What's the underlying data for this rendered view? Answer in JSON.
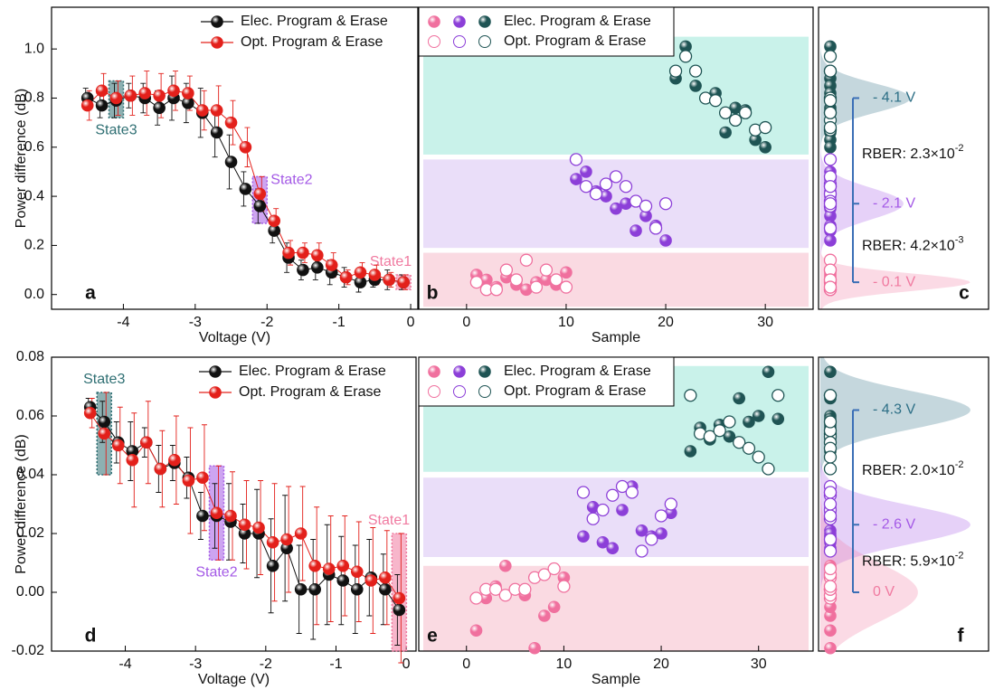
{
  "chart_data": [
    {
      "type": "errorline",
      "panel": "a",
      "xlabel": "Voltage (V)",
      "ylabel": "Power difference (dB)",
      "xlim": [
        -5.0,
        0.1
      ],
      "ylim": [
        -0.06,
        1.17
      ],
      "xticks": [
        -4,
        -3,
        -2,
        -1,
        0
      ],
      "yticks": [
        {
          "value": 0,
          "label": "0.0"
        },
        0.2,
        0.4,
        0.6,
        0.8,
        {
          "value": 1,
          "label": "1.0"
        }
      ],
      "x": [
        -4.5,
        -4.3,
        -4.1,
        -3.9,
        -3.7,
        -3.5,
        -3.3,
        -3.1,
        -2.9,
        -2.7,
        -2.5,
        -2.3,
        -2.1,
        -1.9,
        -1.7,
        -1.5,
        -1.3,
        -1.1,
        -0.9,
        -0.7,
        -0.5,
        -0.3,
        -0.1
      ],
      "series": [
        {
          "name": "Elec. Program & Erase",
          "color": "#111111",
          "values": [
            0.8,
            0.77,
            0.79,
            0.81,
            0.8,
            0.76,
            0.8,
            0.78,
            0.74,
            0.66,
            0.54,
            0.43,
            0.36,
            0.26,
            0.15,
            0.1,
            0.11,
            0.09,
            0.07,
            0.05,
            0.06,
            0.06,
            0.05
          ],
          "errors": [
            0.04,
            0.05,
            0.07,
            0.05,
            0.06,
            0.07,
            0.09,
            0.08,
            0.1,
            0.1,
            0.11,
            0.07,
            0.07,
            0.05,
            0.06,
            0.04,
            0.05,
            0.05,
            0.04,
            0.04,
            0.03,
            0.04,
            0.03
          ]
        },
        {
          "name": "Opt. Program & Erase",
          "color": "#e3201b",
          "values": [
            0.77,
            0.83,
            0.8,
            0.81,
            0.82,
            0.81,
            0.83,
            0.82,
            0.75,
            0.75,
            0.7,
            0.6,
            0.41,
            0.3,
            0.17,
            0.17,
            0.16,
            0.12,
            0.07,
            0.09,
            0.08,
            0.06,
            0.05
          ],
          "errors": [
            0.06,
            0.07,
            0.07,
            0.08,
            0.09,
            0.09,
            0.08,
            0.07,
            0.08,
            0.1,
            0.09,
            0.08,
            0.07,
            0.05,
            0.05,
            0.04,
            0.05,
            0.05,
            0.03,
            0.04,
            0.04,
            0.03,
            0.03
          ]
        }
      ],
      "states": [
        {
          "label": "State3",
          "x": -4.1,
          "color": "#2f6f73"
        },
        {
          "label": "State2",
          "x": -2.1,
          "color": "#a45ae6"
        },
        {
          "label": "State1",
          "x": -0.1,
          "color": "#f07aa0"
        }
      ],
      "legend": "upper right"
    },
    {
      "type": "scatter",
      "panel": "b",
      "xlabel": "Sample",
      "xlim": [
        -4.8,
        34.8
      ],
      "ylim": [
        -0.06,
        1.17
      ],
      "xticks": [
        0,
        10,
        20,
        30
      ],
      "state_colors": [
        "#f0709e",
        "#8c3fd8",
        "#1f5454"
      ],
      "bands": [
        {
          "color": "#f9d3dd",
          "range": [
            -0.05,
            0.17
          ]
        },
        {
          "color": "#e6d8f8",
          "range": [
            0.19,
            0.55
          ]
        },
        {
          "color": "#bff0e6",
          "range": [
            0.57,
            1.05
          ]
        }
      ],
      "x": [
        [
          1,
          2,
          3,
          4,
          5,
          6,
          7,
          8,
          9,
          10
        ],
        [
          11,
          12,
          13,
          14,
          15,
          16,
          17,
          18,
          19,
          20
        ],
        [
          21,
          22,
          23,
          24,
          25,
          26,
          27,
          28,
          29,
          30
        ]
      ],
      "series": [
        {
          "name": "Elec. Program & Erase",
          "marker": "filled",
          "values": [
            [
              0.08,
              0.06,
              0.03,
              0.07,
              0.04,
              0.02,
              0.05,
              0.06,
              0.04,
              0.09
            ],
            [
              0.47,
              0.5,
              0.42,
              0.4,
              0.35,
              0.37,
              0.26,
              0.32,
              0.28,
              0.22
            ],
            [
              0.88,
              1.01,
              0.85,
              0.8,
              0.82,
              0.66,
              0.76,
              0.75,
              0.63,
              0.6
            ]
          ]
        },
        {
          "name": "Opt. Program & Erase",
          "marker": "open",
          "values": [
            [
              0.05,
              0.02,
              0.02,
              0.1,
              0.06,
              0.14,
              0.03,
              0.1,
              0.06,
              0.03
            ],
            [
              0.55,
              0.44,
              0.41,
              0.45,
              0.48,
              0.44,
              0.38,
              0.36,
              0.27,
              0.37
            ],
            [
              0.91,
              0.97,
              0.91,
              0.8,
              0.79,
              0.74,
              0.71,
              0.74,
              0.67,
              0.68
            ]
          ]
        }
      ],
      "legend": "upper left"
    },
    {
      "type": "distribution",
      "panel": "c",
      "distributions": [
        {
          "label": "- 4.1 V",
          "mean": 0.8,
          "sd": 0.06,
          "color": "#2d6f86"
        },
        {
          "label": "- 2.1 V",
          "mean": 0.37,
          "sd": 0.065,
          "color": "#a45ae6"
        },
        {
          "label": "- 0.1 V",
          "mean": 0.05,
          "sd": 0.036,
          "color": "#f07aa0"
        }
      ],
      "rber": [
        {
          "text": "RBER: 2.3×10",
          "exponent": "-2"
        },
        {
          "text": "RBER: 4.2×10",
          "exponent": "-3"
        }
      ]
    },
    {
      "type": "errorline",
      "panel": "d",
      "xlabel": "Voltage (V)",
      "ylabel": "Power difference (dB)",
      "xlim": [
        -5.05,
        0.14
      ],
      "ylim": [
        -0.02,
        0.08
      ],
      "xticks": [
        -4,
        -3,
        -2,
        -1,
        0
      ],
      "yticks": [
        -0.02,
        {
          "value": 0,
          "label": "0.00"
        },
        0.02,
        0.04,
        0.06,
        0.08
      ],
      "x": [
        -4.5,
        -4.3,
        -4.1,
        -3.9,
        -3.7,
        -3.5,
        -3.3,
        -3.1,
        -2.9,
        -2.7,
        -2.5,
        -2.3,
        -2.1,
        -1.9,
        -1.7,
        -1.5,
        -1.3,
        -1.1,
        -0.9,
        -0.7,
        -0.5,
        -0.3,
        -0.1
      ],
      "series": [
        {
          "name": "Elec. Program & Erase",
          "color": "#111111",
          "values": [
            0.063,
            0.058,
            0.051,
            0.048,
            0.051,
            0.042,
            0.044,
            0.039,
            0.026,
            0.026,
            0.024,
            0.02,
            0.02,
            0.009,
            0.015,
            0.001,
            0.001,
            0.006,
            0.004,
            0.001,
            0.005,
            0.001,
            -0.006
          ],
          "errors": [
            0.003,
            0.007,
            0.007,
            0.01,
            0.005,
            0.008,
            0.006,
            0.007,
            0.008,
            0.011,
            0.013,
            0.01,
            0.015,
            0.016,
            0.018,
            0.015,
            0.017,
            0.017,
            0.015,
            0.015,
            0.013,
            0.012,
            0.012
          ]
        },
        {
          "name": "Opt. Program & Erase",
          "color": "#e3201b",
          "values": [
            0.061,
            0.054,
            0.05,
            0.045,
            0.051,
            0.042,
            0.045,
            0.038,
            0.039,
            0.027,
            0.026,
            0.023,
            0.022,
            0.017,
            0.018,
            0.02,
            0.009,
            0.008,
            0.009,
            0.007,
            0.004,
            0.005,
            -0.002
          ],
          "errors": [
            0.005,
            0.014,
            0.013,
            0.016,
            0.014,
            0.013,
            0.015,
            0.018,
            0.018,
            0.016,
            0.015,
            0.015,
            0.016,
            0.02,
            0.018,
            0.016,
            0.02,
            0.018,
            0.017,
            0.017,
            0.018,
            0.016,
            0.022
          ]
        }
      ],
      "states": [
        {
          "label": "State3",
          "x": -4.3,
          "color": "#2f6f73"
        },
        {
          "label": "State2",
          "x": -2.7,
          "color": "#a45ae6"
        },
        {
          "label": "State1",
          "x": -0.1,
          "color": "#f07aa0"
        }
      ],
      "legend": "upper right"
    },
    {
      "type": "scatter",
      "panel": "e",
      "xlabel": "Sample",
      "xlim": [
        -4.9,
        35.6
      ],
      "ylim": [
        -0.02,
        0.08
      ],
      "xticks": [
        0,
        10,
        20,
        30
      ],
      "state_colors": [
        "#f0709e",
        "#8c3fd8",
        "#1f5454"
      ],
      "bands": [
        {
          "color": "#f9d3dd",
          "range": [
            -0.02,
            0.009
          ]
        },
        {
          "color": "#e6d8f8",
          "range": [
            0.012,
            0.039
          ]
        },
        {
          "color": "#bff0e6",
          "range": [
            0.041,
            0.077
          ]
        }
      ],
      "x": [
        [
          1,
          2,
          3,
          4,
          5,
          6,
          7,
          8,
          9,
          10
        ],
        [
          12,
          13,
          14,
          15,
          16,
          17,
          18,
          19,
          20,
          21
        ],
        [
          23,
          24,
          25,
          26,
          27,
          28,
          29,
          30,
          31,
          32
        ]
      ],
      "series": [
        {
          "name": "Elec. Program & Erase",
          "marker": "filled",
          "values": [
            [
              -0.013,
              -0.002,
              0.002,
              0.009,
              0.001,
              -0.001,
              -0.019,
              -0.008,
              -0.005,
              0.005
            ],
            [
              0.019,
              0.029,
              0.017,
              0.015,
              0.028,
              0.036,
              0.021,
              0.019,
              0.02,
              0.027
            ],
            [
              0.048,
              0.056,
              0.052,
              0.057,
              0.053,
              0.066,
              0.058,
              0.06,
              0.075,
              0.059
            ]
          ]
        },
        {
          "name": "Opt. Program & Erase",
          "marker": "open",
          "values": [
            [
              -0.002,
              0.001,
              0.001,
              -0.001,
              0.001,
              0.001,
              0.005,
              0.006,
              0.008,
              0.002
            ],
            [
              0.034,
              0.025,
              0.028,
              0.033,
              0.036,
              0.034,
              0.014,
              0.018,
              0.026,
              0.03
            ],
            [
              0.067,
              0.054,
              0.053,
              0.055,
              0.058,
              0.051,
              0.049,
              0.046,
              0.042,
              0.067
            ]
          ]
        }
      ],
      "legend": "upper left"
    },
    {
      "type": "distribution",
      "panel": "f",
      "distributions": [
        {
          "label": "- 4.3 V",
          "mean": 0.062,
          "sd": 0.0065,
          "color": "#2d6f86"
        },
        {
          "label": "- 2.6 V",
          "mean": 0.023,
          "sd": 0.0065,
          "color": "#a45ae6"
        },
        {
          "label": "0 V",
          "mean": 0.0,
          "sd": 0.01,
          "color": "#f07aa0"
        }
      ],
      "rber": [
        {
          "text": "RBER: 2.0×10",
          "exponent": "-2"
        },
        {
          "text": "RBER: 5.9×10",
          "exponent": "-2"
        }
      ]
    }
  ]
}
